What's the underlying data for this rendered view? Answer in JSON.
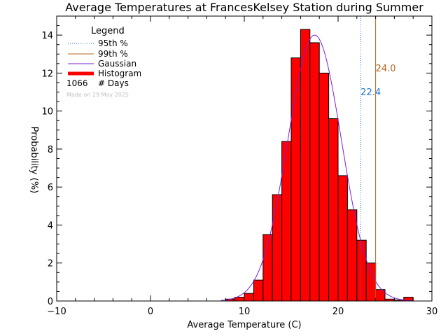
{
  "chart_data": {
    "type": "bar",
    "title": "Average Temperatures at FrancesKelsey Station during Summer",
    "xlabel": "Average Temperature (C)",
    "ylabel_line1": "Probability",
    "ylabel_line2": "(%)",
    "xlim": [
      -10,
      30
    ],
    "ylim": [
      0,
      15
    ],
    "xticks": [
      -10,
      0,
      10,
      20,
      30
    ],
    "yticks": [
      0,
      2,
      4,
      6,
      8,
      10,
      12,
      14
    ],
    "bin_width": 1,
    "bins": [
      {
        "x": 8,
        "y": 0.1
      },
      {
        "x": 9,
        "y": 0.2
      },
      {
        "x": 10,
        "y": 0.4
      },
      {
        "x": 11,
        "y": 1.1
      },
      {
        "x": 12,
        "y": 3.5
      },
      {
        "x": 13,
        "y": 5.6
      },
      {
        "x": 14,
        "y": 8.4
      },
      {
        "x": 15,
        "y": 12.8
      },
      {
        "x": 16,
        "y": 14.3
      },
      {
        "x": 17,
        "y": 13.6
      },
      {
        "x": 18,
        "y": 12.0
      },
      {
        "x": 19,
        "y": 9.6
      },
      {
        "x": 20,
        "y": 6.6
      },
      {
        "x": 21,
        "y": 4.8
      },
      {
        "x": 22,
        "y": 3.2
      },
      {
        "x": 23,
        "y": 2.0
      },
      {
        "x": 24,
        "y": 0.6
      },
      {
        "x": 25,
        "y": 0.1
      },
      {
        "x": 26,
        "y": 0.05
      },
      {
        "x": 27,
        "y": 0.2
      }
    ],
    "gaussian": {
      "mean": 17.5,
      "sigma": 2.85,
      "peak": 14.0
    },
    "percentiles": [
      {
        "name": "95th %",
        "value": 22.4,
        "label": "22.4",
        "color": "#1e78d2",
        "style": "dotted"
      },
      {
        "name": "99th %",
        "value": 24.0,
        "label": "24.0",
        "color": "#b8641e",
        "style": "solid"
      }
    ],
    "legend": {
      "title": "Legend",
      "entries": [
        {
          "label": "95th %",
          "color": "#1e78d2",
          "style": "dotted"
        },
        {
          "label": "99th %",
          "color": "#b8641e",
          "style": "solid"
        },
        {
          "label": "Gaussian",
          "color": "#7a1fd6",
          "style": "solid"
        },
        {
          "label": "Histogram",
          "color": "#ff0000",
          "style": "thick"
        }
      ],
      "count_value": "1066",
      "count_label": "# Days",
      "made_on": "Made on 29 May 2025"
    },
    "colors": {
      "bar_fill": "#ff0000",
      "bar_edge": "#000000",
      "gaussian": "#7a1fd6"
    }
  }
}
